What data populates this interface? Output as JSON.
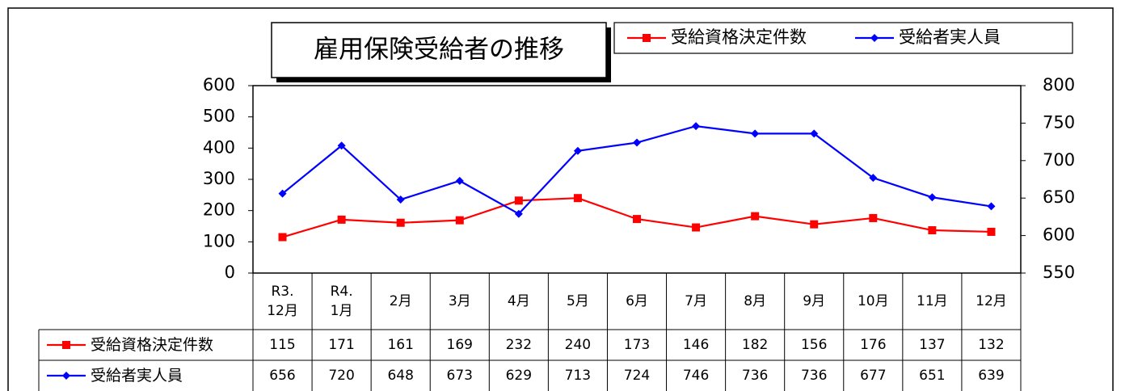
{
  "chart_data": {
    "type": "line",
    "title": "雇用保険受給者の推移",
    "categories": [
      "R3.\n12月",
      "R4.\n1月",
      "2月",
      "3月",
      "4月",
      "5月",
      "6月",
      "7月",
      "8月",
      "9月",
      "10月",
      "11月",
      "12月"
    ],
    "series": [
      {
        "name": "受給資格決定件数",
        "color": "#ff0000",
        "marker": "square",
        "axis": "y",
        "values": [
          115,
          171,
          161,
          169,
          232,
          240,
          173,
          146,
          182,
          156,
          176,
          137,
          132
        ]
      },
      {
        "name": "受給者実人員",
        "color": "#0000ff",
        "marker": "diamond",
        "axis": "y2",
        "values": [
          656,
          720,
          648,
          673,
          629,
          713,
          724,
          746,
          736,
          736,
          677,
          651,
          639
        ]
      }
    ],
    "ylim": [
      0,
      600
    ],
    "yticks": [
      0,
      100,
      200,
      300,
      400,
      500,
      600
    ],
    "y2lim": [
      550,
      800
    ],
    "y2ticks": [
      550,
      600,
      650,
      700,
      750,
      800
    ],
    "legend": "top-right",
    "data_table": true
  }
}
